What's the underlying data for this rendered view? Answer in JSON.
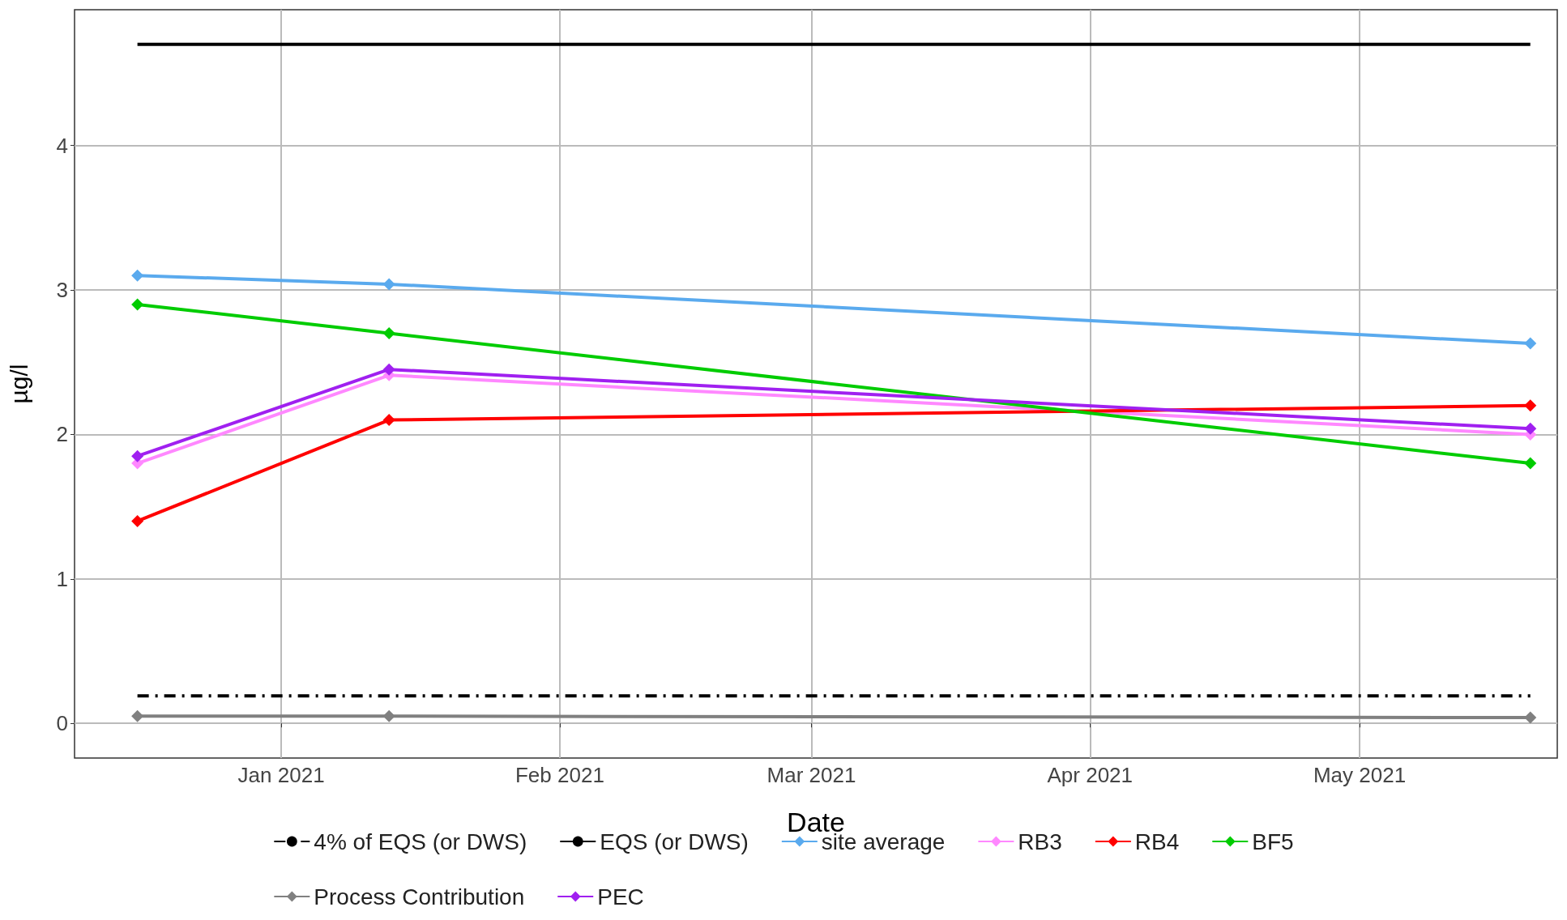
{
  "chart_data": {
    "type": "line",
    "xlabel": "Date",
    "ylabel": "µg/l",
    "xlim": [
      "2020-12-09",
      "2021-05-23"
    ],
    "xticks": [
      {
        "value": "2021-01-01",
        "label": "Jan 2021"
      },
      {
        "value": "2021-02-01",
        "label": "Feb 2021"
      },
      {
        "value": "2021-03-01",
        "label": "Mar 2021"
      },
      {
        "value": "2021-04-01",
        "label": "Apr 2021"
      },
      {
        "value": "2021-05-01",
        "label": "May 2021"
      }
    ],
    "ylim": [
      -0.24,
      4.94
    ],
    "yticks": [
      0,
      1,
      2,
      3,
      4
    ],
    "grid": true,
    "legend": "bottom",
    "marker": "diamond",
    "x": [
      "2020-12-16",
      "2021-01-13",
      "2021-05-20"
    ],
    "series": [
      {
        "name": "4% of EQS (or DWS)",
        "color": "#000000",
        "values": [
          0.19,
          0.19,
          0.19
        ],
        "marker": "none",
        "line_style": "dashdot"
      },
      {
        "name": "EQS (or DWS)",
        "color": "#000000",
        "values": [
          4.7,
          4.7,
          4.7
        ],
        "marker": "none",
        "line_style": "solid"
      },
      {
        "name": "site average",
        "color": "#5aaaee",
        "values": [
          3.1,
          3.04,
          2.63
        ]
      },
      {
        "name": "RB3",
        "color": "#ff88ff",
        "values": [
          1.8,
          2.41,
          2.0
        ]
      },
      {
        "name": "RB4",
        "color": "#ff0000",
        "values": [
          1.4,
          2.1,
          2.2
        ]
      },
      {
        "name": "BF5",
        "color": "#00cc00",
        "values": [
          2.9,
          2.7,
          1.8
        ]
      },
      {
        "name": "Process Contribution",
        "color": "#808080",
        "values": [
          0.05,
          0.05,
          0.04
        ]
      },
      {
        "name": "PEC",
        "color": "#a020f0",
        "values": [
          1.85,
          2.45,
          2.04
        ]
      }
    ]
  }
}
